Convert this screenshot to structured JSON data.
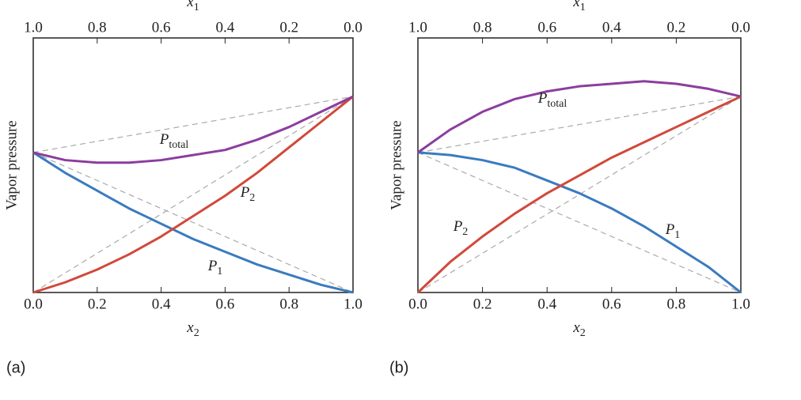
{
  "chart_data": [
    {
      "type": "line",
      "caption": "(a)",
      "y_label": "Vapor pressure",
      "x_label": {
        "main": "x",
        "sub": "2"
      },
      "x1_label": {
        "main": "x",
        "sub": "1"
      },
      "x": [
        0,
        0.1,
        0.2,
        0.3,
        0.4,
        0.5,
        0.6,
        0.7,
        0.8,
        0.9,
        1
      ],
      "xlim": [
        0,
        1
      ],
      "ylim": [
        0,
        1
      ],
      "xticks": [
        {
          "value": 0,
          "label": "0.0"
        },
        0.2,
        0.4,
        0.6,
        0.8,
        {
          "value": 1,
          "label": "1.0"
        }
      ],
      "x1lim": [
        1,
        0
      ],
      "x1ticks": [
        {
          "value": 1,
          "label": "1.0"
        },
        0.8,
        0.6,
        0.4,
        0.2,
        {
          "value": 0,
          "label": "0.0"
        }
      ],
      "series": [
        {
          "name": "P",
          "name_sub": "1",
          "color": "#3a7bbf",
          "values": [
            0.55,
            0.47,
            0.4,
            0.33,
            0.27,
            0.21,
            0.16,
            0.11,
            0.07,
            0.03,
            0
          ]
        },
        {
          "name": "P",
          "name_sub": "2",
          "color": "#d1493a",
          "values": [
            0,
            0.04,
            0.09,
            0.15,
            0.22,
            0.3,
            0.38,
            0.47,
            0.57,
            0.67,
            0.77
          ]
        },
        {
          "name": "P",
          "name_sub": "total",
          "color": "#8c3d9e",
          "values": [
            0.55,
            0.52,
            0.51,
            0.51,
            0.52,
            0.54,
            0.56,
            0.6,
            0.65,
            0.71,
            0.77
          ]
        }
      ],
      "reference_lines": [
        {
          "color": "#aaaaaa",
          "x": [
            0,
            1
          ],
          "values": [
            0.55,
            0
          ]
        },
        {
          "color": "#aaaaaa",
          "x": [
            0,
            1
          ],
          "values": [
            0,
            0.77
          ]
        },
        {
          "color": "#aaaaaa",
          "x": [
            0,
            1
          ],
          "values": [
            0.55,
            0.77
          ]
        }
      ]
    },
    {
      "type": "line",
      "caption": "(b)",
      "y_label": "Vapor pressure",
      "x_label": {
        "main": "x",
        "sub": "2"
      },
      "x1_label": {
        "main": "x",
        "sub": "1"
      },
      "x": [
        0,
        0.1,
        0.2,
        0.3,
        0.4,
        0.5,
        0.6,
        0.7,
        0.8,
        0.9,
        1
      ],
      "xlim": [
        0,
        1
      ],
      "ylim": [
        0,
        1
      ],
      "xticks": [
        {
          "value": 0,
          "label": "0.0"
        },
        0.2,
        0.4,
        0.6,
        0.8,
        {
          "value": 1,
          "label": "1.0"
        }
      ],
      "x1lim": [
        1,
        0
      ],
      "x1ticks": [
        {
          "value": 1,
          "label": "1.0"
        },
        0.8,
        0.6,
        0.4,
        0.2,
        {
          "value": 0,
          "label": "0.0"
        }
      ],
      "series": [
        {
          "name": "P",
          "name_sub": "1",
          "color": "#3a7bbf",
          "values": [
            0.55,
            0.54,
            0.52,
            0.49,
            0.44,
            0.39,
            0.33,
            0.26,
            0.18,
            0.1,
            0
          ]
        },
        {
          "name": "P",
          "name_sub": "2",
          "color": "#d1493a",
          "values": [
            0,
            0.12,
            0.22,
            0.31,
            0.39,
            0.46,
            0.53,
            0.59,
            0.65,
            0.71,
            0.77
          ]
        },
        {
          "name": "P",
          "name_sub": "total",
          "color": "#8c3d9e",
          "values": [
            0.55,
            0.64,
            0.71,
            0.76,
            0.79,
            0.81,
            0.82,
            0.83,
            0.82,
            0.8,
            0.77
          ]
        }
      ],
      "reference_lines": [
        {
          "color": "#aaaaaa",
          "x": [
            0,
            1
          ],
          "values": [
            0.55,
            0
          ]
        },
        {
          "color": "#aaaaaa",
          "x": [
            0,
            1
          ],
          "values": [
            0,
            0.77
          ]
        },
        {
          "color": "#aaaaaa",
          "x": [
            0,
            1
          ],
          "values": [
            0.55,
            0.77
          ]
        }
      ]
    }
  ]
}
